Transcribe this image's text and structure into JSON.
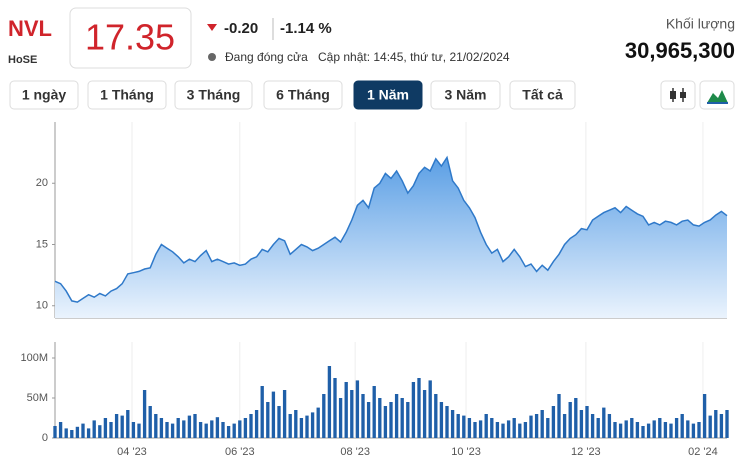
{
  "header": {
    "symbol": "NVL",
    "exchange": "HoSE",
    "price": "17.35",
    "change": "-0.20",
    "change_pct": "-1.14 %",
    "status": "Đang đóng cửa",
    "updated": "Cập nhật: 14:45, thứ tư, 21/02/2024",
    "volume_label": "Khối lượng",
    "volume": "30,965,300"
  },
  "ranges": {
    "items": [
      "1 ngày",
      "1 Tháng",
      "3 Tháng",
      "6 Tháng",
      "1 Năm",
      "3 Năm",
      "Tất cả"
    ],
    "active": 4
  },
  "chart_data": [
    {
      "type": "area",
      "color": "#2f79c9",
      "ylim": [
        9,
        25
      ],
      "yticks": [
        10,
        15,
        20
      ],
      "xlim": [
        0,
        120
      ],
      "grid": true,
      "values": [
        12.0,
        11.8,
        11.2,
        10.4,
        10.3,
        10.6,
        10.9,
        10.7,
        11.0,
        10.8,
        11.2,
        11.4,
        11.8,
        12.6,
        12.7,
        12.8,
        13.0,
        13.1,
        14.2,
        15.0,
        14.7,
        14.4,
        14.0,
        13.5,
        13.8,
        13.6,
        14.1,
        14.5,
        13.6,
        13.8,
        13.6,
        13.4,
        13.5,
        13.3,
        13.4,
        13.8,
        14.0,
        14.6,
        14.4,
        15.0,
        15.5,
        15.3,
        14.2,
        14.6,
        15.0,
        14.8,
        14.5,
        14.7,
        15.0,
        15.3,
        15.6,
        15.2,
        16.0,
        17.0,
        18.2,
        18.6,
        18.0,
        19.6,
        20.0,
        20.8,
        20.4,
        21.0,
        20.2,
        19.2,
        19.8,
        20.8,
        21.3,
        21.0,
        22.0,
        21.4,
        22.1,
        20.2,
        19.6,
        18.6,
        18.0,
        17.2,
        16.0,
        15.0,
        14.3,
        14.6,
        13.6,
        14.0,
        14.6,
        14.0,
        13.2,
        13.4,
        12.8,
        13.3,
        12.9,
        13.6,
        14.2,
        15.0,
        15.5,
        15.8,
        16.3,
        16.2,
        17.0,
        17.3,
        17.6,
        17.8,
        18.0,
        17.6,
        18.1,
        17.8,
        17.5,
        17.3,
        16.6,
        16.8,
        16.6,
        16.9,
        16.8,
        16.6,
        16.9,
        17.0,
        16.6,
        16.5,
        16.8,
        17.0,
        17.4,
        17.7,
        17.35
      ]
    },
    {
      "type": "bar",
      "color": "#1f5fa8",
      "ylim": [
        0,
        120000000
      ],
      "xlim": [
        0,
        120
      ],
      "yticks": [
        0,
        {
          "value": 50000000,
          "label": "50M"
        },
        {
          "value": 100000000,
          "label": "100M"
        }
      ],
      "xticks": [
        {
          "value": 13.75,
          "label": "04 '23"
        },
        {
          "value": 33,
          "label": "06 '23"
        },
        {
          "value": 53.6,
          "label": "08 '23"
        },
        {
          "value": 73.4,
          "label": "10 '23"
        },
        {
          "value": 94.8,
          "label": "12 '23"
        },
        {
          "value": 115.7,
          "label": "02 '24"
        }
      ],
      "values": [
        15000000,
        20000000,
        12000000,
        10000000,
        14000000,
        18000000,
        12000000,
        22000000,
        16000000,
        25000000,
        20000000,
        30000000,
        28000000,
        35000000,
        20000000,
        18000000,
        60000000,
        40000000,
        30000000,
        25000000,
        20000000,
        18000000,
        25000000,
        22000000,
        28000000,
        30000000,
        20000000,
        18000000,
        22000000,
        26000000,
        20000000,
        15000000,
        18000000,
        22000000,
        25000000,
        30000000,
        35000000,
        65000000,
        45000000,
        58000000,
        40000000,
        60000000,
        30000000,
        35000000,
        25000000,
        28000000,
        32000000,
        38000000,
        55000000,
        90000000,
        75000000,
        50000000,
        70000000,
        60000000,
        72000000,
        55000000,
        45000000,
        65000000,
        50000000,
        40000000,
        45000000,
        55000000,
        50000000,
        45000000,
        70000000,
        75000000,
        60000000,
        72000000,
        55000000,
        45000000,
        40000000,
        35000000,
        30000000,
        28000000,
        25000000,
        20000000,
        22000000,
        30000000,
        25000000,
        20000000,
        18000000,
        22000000,
        25000000,
        18000000,
        20000000,
        28000000,
        30000000,
        35000000,
        25000000,
        40000000,
        55000000,
        30000000,
        45000000,
        50000000,
        35000000,
        40000000,
        30000000,
        25000000,
        38000000,
        30000000,
        20000000,
        18000000,
        22000000,
        25000000,
        20000000,
        15000000,
        18000000,
        22000000,
        25000000,
        20000000,
        18000000,
        25000000,
        30000000,
        22000000,
        18000000,
        20000000,
        55000000,
        28000000,
        35000000,
        30000000,
        35000000
      ]
    }
  ]
}
